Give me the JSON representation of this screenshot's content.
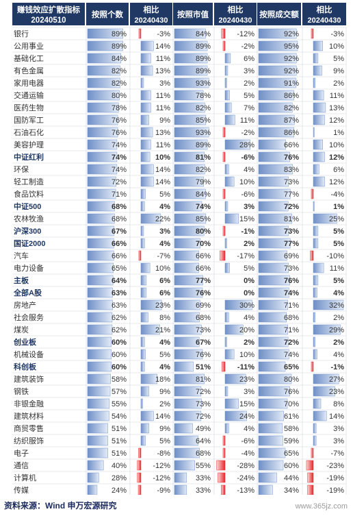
{
  "chart_data": {
    "type": "table",
    "title": "赚钱效应扩散指标",
    "date": "20240510",
    "columns": [
      {
        "key": "count",
        "label": "按照个数",
        "kind": "pct"
      },
      {
        "key": "count_chg",
        "label": "相比",
        "sub": "20240430",
        "kind": "chg"
      },
      {
        "key": "mcap",
        "label": "按照市值",
        "kind": "pct"
      },
      {
        "key": "mcap_chg",
        "label": "相比",
        "sub": "20240430",
        "kind": "chg"
      },
      {
        "key": "turnover",
        "label": "按照成交额",
        "kind": "pct"
      },
      {
        "key": "turnover_chg",
        "label": "相比",
        "sub": "20240430",
        "kind": "chg"
      }
    ],
    "rows": [
      {
        "name": "银行",
        "bold": false,
        "values": [
          89,
          -3,
          84,
          -12,
          92,
          -3
        ]
      },
      {
        "name": "公用事业",
        "bold": false,
        "values": [
          89,
          14,
          89,
          -2,
          95,
          10
        ]
      },
      {
        "name": "基础化工",
        "bold": false,
        "values": [
          84,
          11,
          89,
          6,
          92,
          5
        ]
      },
      {
        "name": "有色金属",
        "bold": false,
        "values": [
          82,
          13,
          89,
          3,
          92,
          9
        ]
      },
      {
        "name": "家用电器",
        "bold": false,
        "values": [
          82,
          3,
          93,
          2,
          91,
          2
        ]
      },
      {
        "name": "交通运输",
        "bold": false,
        "values": [
          80,
          11,
          78,
          5,
          86,
          11
        ]
      },
      {
        "name": "医药生物",
        "bold": false,
        "values": [
          78,
          11,
          82,
          7,
          82,
          13
        ]
      },
      {
        "name": "国防军工",
        "bold": false,
        "values": [
          76,
          9,
          85,
          11,
          87,
          12
        ]
      },
      {
        "name": "石油石化",
        "bold": false,
        "values": [
          76,
          13,
          93,
          -2,
          86,
          1
        ]
      },
      {
        "name": "美容护理",
        "bold": false,
        "values": [
          74,
          11,
          89,
          28,
          66,
          10
        ]
      },
      {
        "name": "中证红利",
        "bold": true,
        "values": [
          74,
          10,
          81,
          -6,
          76,
          12
        ]
      },
      {
        "name": "环保",
        "bold": false,
        "values": [
          74,
          14,
          82,
          4,
          83,
          6
        ]
      },
      {
        "name": "轻工制造",
        "bold": false,
        "values": [
          72,
          14,
          79,
          10,
          73,
          12
        ]
      },
      {
        "name": "食品饮料",
        "bold": false,
        "values": [
          71,
          5,
          84,
          -6,
          77,
          -4
        ]
      },
      {
        "name": "中证500",
        "bold": true,
        "values": [
          68,
          4,
          74,
          3,
          72,
          1
        ]
      },
      {
        "name": "农林牧渔",
        "bold": false,
        "values": [
          68,
          22,
          85,
          15,
          81,
          25
        ]
      },
      {
        "name": "沪深300",
        "bold": true,
        "values": [
          67,
          3,
          80,
          -1,
          73,
          5
        ]
      },
      {
        "name": "国证2000",
        "bold": true,
        "values": [
          66,
          4,
          70,
          2,
          77,
          5
        ]
      },
      {
        "name": "汽车",
        "bold": false,
        "values": [
          66,
          -7,
          66,
          -17,
          69,
          -10
        ]
      },
      {
        "name": "电力设备",
        "bold": false,
        "values": [
          65,
          10,
          66,
          5,
          73,
          11
        ]
      },
      {
        "name": "主板",
        "bold": true,
        "values": [
          64,
          6,
          77,
          0,
          76,
          5
        ]
      },
      {
        "name": "全部A股",
        "bold": true,
        "values": [
          63,
          6,
          76,
          0,
          74,
          4
        ]
      },
      {
        "name": "房地产",
        "bold": false,
        "values": [
          63,
          23,
          69,
          30,
          71,
          32
        ]
      },
      {
        "name": "社会服务",
        "bold": false,
        "values": [
          62,
          8,
          68,
          4,
          68,
          2
        ]
      },
      {
        "name": "煤炭",
        "bold": false,
        "values": [
          62,
          21,
          73,
          20,
          71,
          29
        ]
      },
      {
        "name": "创业板",
        "bold": true,
        "values": [
          60,
          4,
          67,
          2,
          72,
          2
        ]
      },
      {
        "name": "机械设备",
        "bold": false,
        "values": [
          60,
          5,
          76,
          10,
          74,
          4
        ]
      },
      {
        "name": "科创板",
        "bold": true,
        "values": [
          60,
          4,
          51,
          -11,
          65,
          -1
        ]
      },
      {
        "name": "建筑装饰",
        "bold": false,
        "values": [
          58,
          18,
          81,
          23,
          80,
          27
        ]
      },
      {
        "name": "钢铁",
        "bold": false,
        "values": [
          57,
          9,
          72,
          3,
          76,
          23
        ]
      },
      {
        "name": "非银金融",
        "bold": false,
        "values": [
          55,
          2,
          73,
          15,
          70,
          8
        ]
      },
      {
        "name": "建筑材料",
        "bold": false,
        "values": [
          54,
          14,
          72,
          24,
          61,
          14
        ]
      },
      {
        "name": "商贸零售",
        "bold": false,
        "values": [
          51,
          9,
          49,
          4,
          58,
          3
        ]
      },
      {
        "name": "纺织服饰",
        "bold": false,
        "values": [
          51,
          5,
          64,
          -6,
          59,
          3
        ]
      },
      {
        "name": "电子",
        "bold": false,
        "values": [
          51,
          -8,
          68,
          -4,
          65,
          -7
        ]
      },
      {
        "name": "通信",
        "bold": false,
        "values": [
          40,
          -12,
          55,
          -28,
          60,
          -23
        ]
      },
      {
        "name": "计算机",
        "bold": false,
        "values": [
          28,
          -12,
          33,
          -24,
          44,
          -19
        ]
      },
      {
        "name": "传媒",
        "bold": false,
        "values": [
          24,
          -9,
          33,
          -13,
          34,
          -19
        ]
      }
    ]
  },
  "source_text": "资料来源：Wind  申万宏源研究",
  "watermark": "www.365jz.com",
  "colors": {
    "header_bg": "#1f3864",
    "header_text": "#ffffff",
    "bar_blue_dark": "#6f8fc7",
    "bar_blue_light": "#e3ebf7",
    "bar_red": "#e8262b",
    "bar_red_light": "#f9d6d6",
    "text": "#333333",
    "border": "#d0d5de"
  }
}
